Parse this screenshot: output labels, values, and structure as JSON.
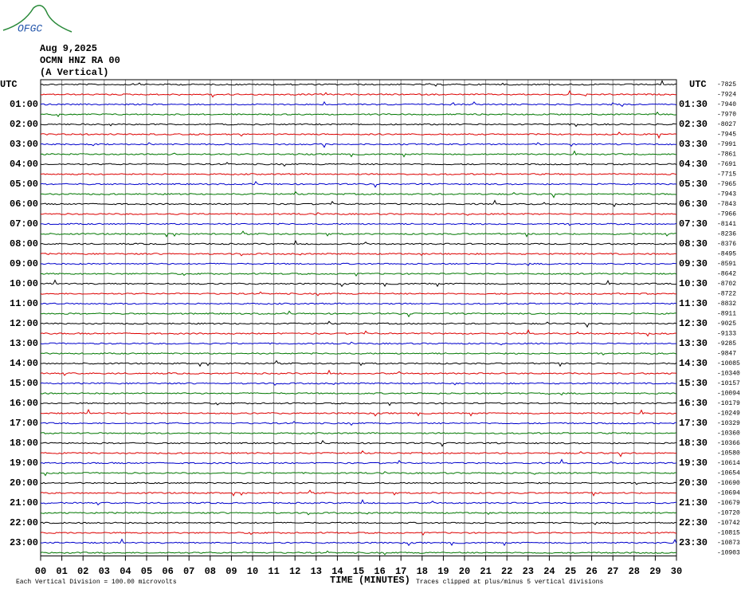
{
  "logo": "OFGC",
  "header": {
    "date": "Aug 9,2025",
    "station": "OCMN HNZ RA 00",
    "component": "(A Vertical)"
  },
  "left_labels": [
    "UTC",
    "01:00",
    "02:00",
    "03:00",
    "04:00",
    "05:00",
    "06:00",
    "07:00",
    "08:00",
    "09:00",
    "10:00",
    "11:00",
    "12:00",
    "13:00",
    "14:00",
    "15:00",
    "16:00",
    "17:00",
    "18:00",
    "19:00",
    "20:00",
    "21:00",
    "22:00",
    "23:00"
  ],
  "right_labels": [
    "UTC",
    "01:30",
    "02:30",
    "03:30",
    "04:30",
    "05:30",
    "06:30",
    "07:30",
    "08:30",
    "09:30",
    "10:30",
    "11:30",
    "12:30",
    "13:30",
    "14:30",
    "15:30",
    "16:30",
    "17:30",
    "18:30",
    "19:30",
    "20:30",
    "21:30",
    "22:30",
    "23:30"
  ],
  "offsets": [
    -7825,
    -7924,
    -7940,
    -7970,
    -8027,
    -7945,
    -7991,
    -7861,
    -7691,
    -7715,
    -7965,
    -7943,
    -7843,
    -7966,
    -8141,
    -8236,
    -8376,
    -8495,
    -8591,
    -8642,
    -8702,
    -8722,
    -8832,
    -8911,
    -9025,
    -9133,
    -9285,
    -9847,
    -10085,
    -10340,
    -10157,
    -10094,
    -10179,
    -10249,
    -10329,
    -10360,
    -10366,
    -10580,
    -10614,
    -10654,
    -10690,
    -10694,
    -10679,
    -10720,
    -10742,
    -10815,
    -10873,
    -10903
  ],
  "x_ticks": [
    "00",
    "01",
    "02",
    "03",
    "04",
    "05",
    "06",
    "07",
    "08",
    "09",
    "10",
    "11",
    "12",
    "13",
    "14",
    "15",
    "16",
    "17",
    "18",
    "19",
    "20",
    "21",
    "22",
    "23",
    "24",
    "25",
    "26",
    "27",
    "28",
    "29",
    "30"
  ],
  "footer": {
    "scale": "Each Vertical Division =  100.00 microvolts",
    "axis": "TIME (MINUTES)",
    "clip": "Traces clipped at plus/minus 5 vertical divisions"
  }
}
